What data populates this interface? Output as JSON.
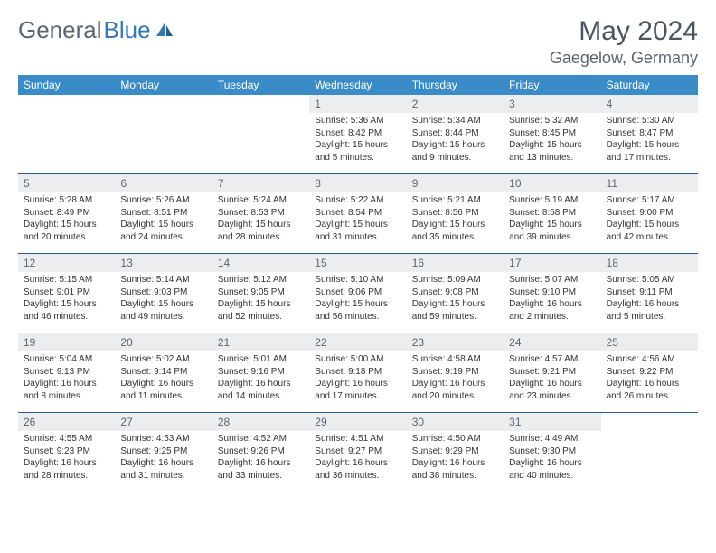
{
  "logo_part1": "General",
  "logo_part2": "Blue",
  "month_title": "May 2024",
  "location": "Gaegelow, Germany",
  "colors": {
    "header_bg": "#3a8cc9",
    "header_text": "#ffffff",
    "daynum_bg": "#ecedef",
    "border": "#2f5a82",
    "logo_gray": "#5a6670",
    "logo_blue": "#3478b8",
    "body_text": "#333333",
    "background": "#ffffff"
  },
  "day_headers": [
    "Sunday",
    "Monday",
    "Tuesday",
    "Wednesday",
    "Thursday",
    "Friday",
    "Saturday"
  ],
  "weeks": [
    [
      {
        "empty": true
      },
      {
        "empty": true
      },
      {
        "empty": true
      },
      {
        "day": "1",
        "sunrise": "Sunrise: 5:36 AM",
        "sunset": "Sunset: 8:42 PM",
        "daylight": "Daylight: 15 hours and 5 minutes."
      },
      {
        "day": "2",
        "sunrise": "Sunrise: 5:34 AM",
        "sunset": "Sunset: 8:44 PM",
        "daylight": "Daylight: 15 hours and 9 minutes."
      },
      {
        "day": "3",
        "sunrise": "Sunrise: 5:32 AM",
        "sunset": "Sunset: 8:45 PM",
        "daylight": "Daylight: 15 hours and 13 minutes."
      },
      {
        "day": "4",
        "sunrise": "Sunrise: 5:30 AM",
        "sunset": "Sunset: 8:47 PM",
        "daylight": "Daylight: 15 hours and 17 minutes."
      }
    ],
    [
      {
        "day": "5",
        "sunrise": "Sunrise: 5:28 AM",
        "sunset": "Sunset: 8:49 PM",
        "daylight": "Daylight: 15 hours and 20 minutes."
      },
      {
        "day": "6",
        "sunrise": "Sunrise: 5:26 AM",
        "sunset": "Sunset: 8:51 PM",
        "daylight": "Daylight: 15 hours and 24 minutes."
      },
      {
        "day": "7",
        "sunrise": "Sunrise: 5:24 AM",
        "sunset": "Sunset: 8:53 PM",
        "daylight": "Daylight: 15 hours and 28 minutes."
      },
      {
        "day": "8",
        "sunrise": "Sunrise: 5:22 AM",
        "sunset": "Sunset: 8:54 PM",
        "daylight": "Daylight: 15 hours and 31 minutes."
      },
      {
        "day": "9",
        "sunrise": "Sunrise: 5:21 AM",
        "sunset": "Sunset: 8:56 PM",
        "daylight": "Daylight: 15 hours and 35 minutes."
      },
      {
        "day": "10",
        "sunrise": "Sunrise: 5:19 AM",
        "sunset": "Sunset: 8:58 PM",
        "daylight": "Daylight: 15 hours and 39 minutes."
      },
      {
        "day": "11",
        "sunrise": "Sunrise: 5:17 AM",
        "sunset": "Sunset: 9:00 PM",
        "daylight": "Daylight: 15 hours and 42 minutes."
      }
    ],
    [
      {
        "day": "12",
        "sunrise": "Sunrise: 5:15 AM",
        "sunset": "Sunset: 9:01 PM",
        "daylight": "Daylight: 15 hours and 46 minutes."
      },
      {
        "day": "13",
        "sunrise": "Sunrise: 5:14 AM",
        "sunset": "Sunset: 9:03 PM",
        "daylight": "Daylight: 15 hours and 49 minutes."
      },
      {
        "day": "14",
        "sunrise": "Sunrise: 5:12 AM",
        "sunset": "Sunset: 9:05 PM",
        "daylight": "Daylight: 15 hours and 52 minutes."
      },
      {
        "day": "15",
        "sunrise": "Sunrise: 5:10 AM",
        "sunset": "Sunset: 9:06 PM",
        "daylight": "Daylight: 15 hours and 56 minutes."
      },
      {
        "day": "16",
        "sunrise": "Sunrise: 5:09 AM",
        "sunset": "Sunset: 9:08 PM",
        "daylight": "Daylight: 15 hours and 59 minutes."
      },
      {
        "day": "17",
        "sunrise": "Sunrise: 5:07 AM",
        "sunset": "Sunset: 9:10 PM",
        "daylight": "Daylight: 16 hours and 2 minutes."
      },
      {
        "day": "18",
        "sunrise": "Sunrise: 5:05 AM",
        "sunset": "Sunset: 9:11 PM",
        "daylight": "Daylight: 16 hours and 5 minutes."
      }
    ],
    [
      {
        "day": "19",
        "sunrise": "Sunrise: 5:04 AM",
        "sunset": "Sunset: 9:13 PM",
        "daylight": "Daylight: 16 hours and 8 minutes."
      },
      {
        "day": "20",
        "sunrise": "Sunrise: 5:02 AM",
        "sunset": "Sunset: 9:14 PM",
        "daylight": "Daylight: 16 hours and 11 minutes."
      },
      {
        "day": "21",
        "sunrise": "Sunrise: 5:01 AM",
        "sunset": "Sunset: 9:16 PM",
        "daylight": "Daylight: 16 hours and 14 minutes."
      },
      {
        "day": "22",
        "sunrise": "Sunrise: 5:00 AM",
        "sunset": "Sunset: 9:18 PM",
        "daylight": "Daylight: 16 hours and 17 minutes."
      },
      {
        "day": "23",
        "sunrise": "Sunrise: 4:58 AM",
        "sunset": "Sunset: 9:19 PM",
        "daylight": "Daylight: 16 hours and 20 minutes."
      },
      {
        "day": "24",
        "sunrise": "Sunrise: 4:57 AM",
        "sunset": "Sunset: 9:21 PM",
        "daylight": "Daylight: 16 hours and 23 minutes."
      },
      {
        "day": "25",
        "sunrise": "Sunrise: 4:56 AM",
        "sunset": "Sunset: 9:22 PM",
        "daylight": "Daylight: 16 hours and 26 minutes."
      }
    ],
    [
      {
        "day": "26",
        "sunrise": "Sunrise: 4:55 AM",
        "sunset": "Sunset: 9:23 PM",
        "daylight": "Daylight: 16 hours and 28 minutes."
      },
      {
        "day": "27",
        "sunrise": "Sunrise: 4:53 AM",
        "sunset": "Sunset: 9:25 PM",
        "daylight": "Daylight: 16 hours and 31 minutes."
      },
      {
        "day": "28",
        "sunrise": "Sunrise: 4:52 AM",
        "sunset": "Sunset: 9:26 PM",
        "daylight": "Daylight: 16 hours and 33 minutes."
      },
      {
        "day": "29",
        "sunrise": "Sunrise: 4:51 AM",
        "sunset": "Sunset: 9:27 PM",
        "daylight": "Daylight: 16 hours and 36 minutes."
      },
      {
        "day": "30",
        "sunrise": "Sunrise: 4:50 AM",
        "sunset": "Sunset: 9:29 PM",
        "daylight": "Daylight: 16 hours and 38 minutes."
      },
      {
        "day": "31",
        "sunrise": "Sunrise: 4:49 AM",
        "sunset": "Sunset: 9:30 PM",
        "daylight": "Daylight: 16 hours and 40 minutes."
      },
      {
        "empty": true
      }
    ]
  ]
}
